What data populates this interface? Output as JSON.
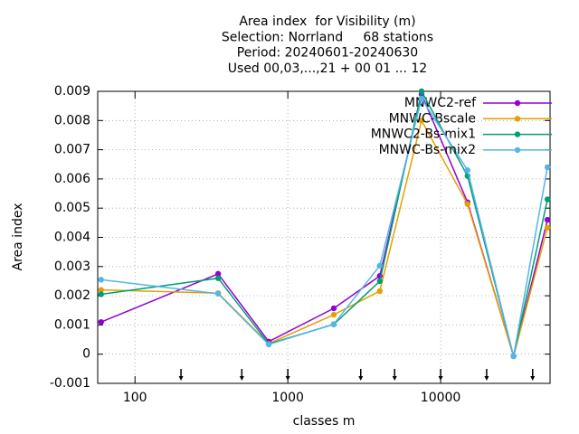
{
  "chart_data": {
    "type": "line",
    "title": [
      "Area index  for Visibility (m)",
      "Selection: Norrland     68 stations",
      "Period: 20240601-20240630",
      "Used 00,03,...,21 + 00 01 ... 12"
    ],
    "xlabel": "classes m",
    "ylabel": "Area index",
    "x": [
      60,
      350,
      750,
      2000,
      4000,
      7500,
      15000,
      30000,
      50000
    ],
    "series": [
      {
        "name": "MNWC2-ref",
        "color": "#9400d3",
        "values": [
          0.0011,
          0.00275,
          0.00043,
          0.00157,
          0.00268,
          0.0089,
          0.0052,
          -7e-05,
          0.0046
        ]
      },
      {
        "name": "MNWC-Bscale",
        "color": "#e69f00",
        "values": [
          0.0022,
          0.00209,
          0.00036,
          0.00135,
          0.00216,
          0.008,
          0.00514,
          -7e-05,
          0.00433
        ]
      },
      {
        "name": "MNWC2-Bs-mix1",
        "color": "#009e73",
        "values": [
          0.00205,
          0.0026,
          0.00035,
          0.00102,
          0.0025,
          0.009,
          0.0061,
          -7e-05,
          0.0053
        ]
      },
      {
        "name": "MNWC-Bs-mix2",
        "color": "#56b4e9",
        "values": [
          0.00255,
          0.00207,
          0.00033,
          0.00103,
          0.00303,
          0.00875,
          0.0063,
          -7e-05,
          0.0064
        ]
      }
    ],
    "thresholds": [
      200,
      500,
      1000,
      3000,
      5000,
      10000,
      20000,
      40000
    ],
    "xscale": "log",
    "xlim": [
      57,
      52000
    ],
    "xticks": [
      100,
      1000,
      10000
    ],
    "ylim": [
      -0.001,
      0.009
    ],
    "yticks": [
      -0.001,
      0,
      0.001,
      0.002,
      0.003,
      0.004,
      0.005,
      0.006,
      0.007,
      0.008,
      0.009
    ],
    "grid": true,
    "legend": "top-right"
  }
}
